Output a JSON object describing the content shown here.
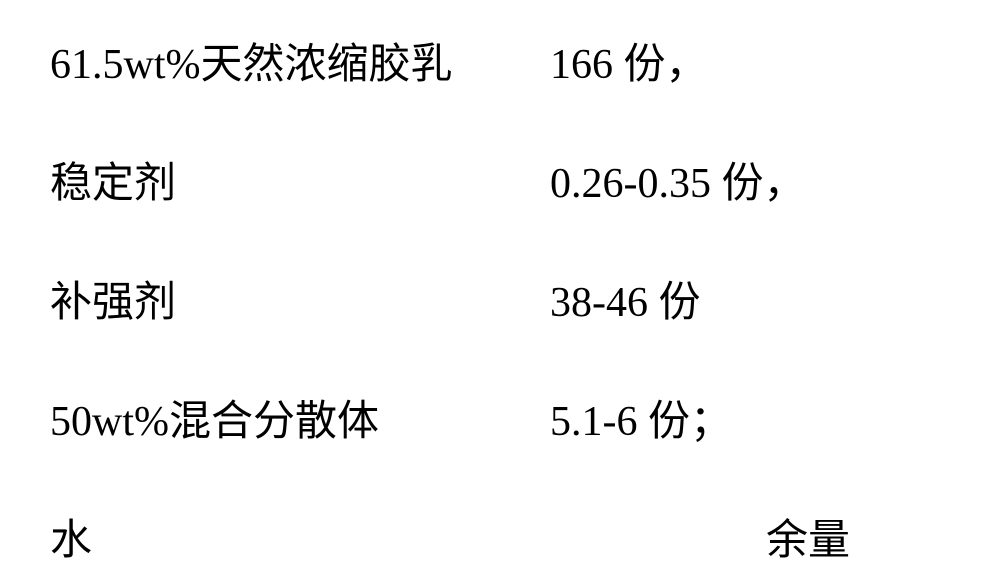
{
  "rows": [
    {
      "label": "61.5wt%天然浓缩胶乳",
      "value": "166 份，",
      "valueAlign": "left"
    },
    {
      "label": "稳定剂",
      "value": "0.26-0.35 份，",
      "valueAlign": "left"
    },
    {
      "label": "补强剂",
      "value": "38-46 份",
      "valueAlign": "left"
    },
    {
      "label": "50wt%混合分散体",
      "value": "5.1-6 份；",
      "valueAlign": "left"
    },
    {
      "label": "水",
      "value": "余量",
      "valueAlign": "right"
    }
  ],
  "styling": {
    "background_color": "#ffffff",
    "text_color": "#000000",
    "font_family": "SimSun",
    "font_size": 42,
    "row_spacing": 58,
    "label_width": 480
  }
}
